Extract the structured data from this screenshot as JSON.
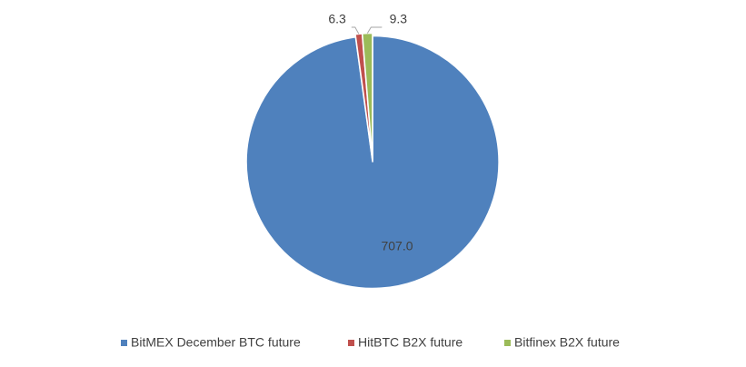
{
  "chart_data": {
    "type": "pie",
    "categories": [
      "BitMEX December BTC future",
      "HitBTC B2X future",
      "Bitfinex B2X future"
    ],
    "values": [
      707.0,
      6.3,
      9.3
    ],
    "value_labels": [
      "707.0",
      "6.3",
      "9.3"
    ],
    "colors": [
      "#4f81bd",
      "#c0504d",
      "#9bbb59"
    ],
    "legend": "bottom"
  }
}
